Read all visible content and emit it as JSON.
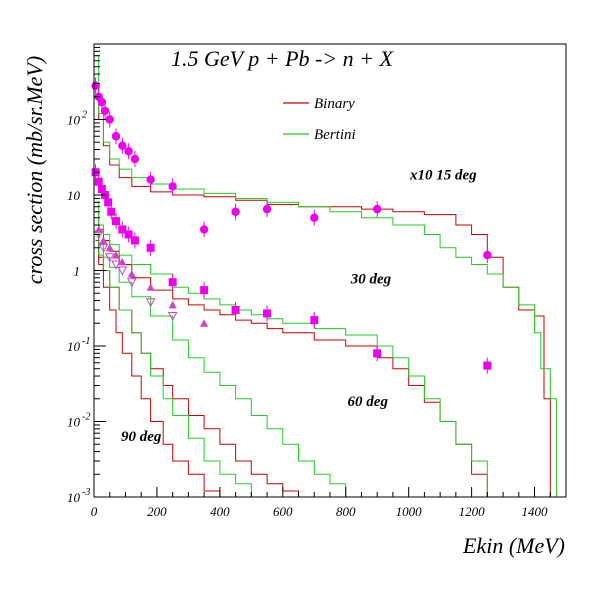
{
  "chart_data": {
    "type": "line",
    "title": "1.5 GeV p + Pb -> n + X",
    "xlabel": "Ekin (MeV)",
    "ylabel": "cross section (mb/sr.MeV)",
    "xlim": [
      0,
      1500
    ],
    "ylim": [
      0.001,
      1000
    ],
    "y_scale": "log",
    "grid": false,
    "legend_position": "top-center",
    "x_ticks": [
      {
        "value": 0,
        "label": "0"
      },
      {
        "value": 200,
        "label": "200"
      },
      {
        "value": 400,
        "label": "400"
      },
      {
        "value": 600,
        "label": "600"
      },
      {
        "value": 800,
        "label": "800"
      },
      {
        "value": 1000,
        "label": "1000"
      },
      {
        "value": 1200,
        "label": "1200"
      },
      {
        "value": 1400,
        "label": "1400"
      }
    ],
    "y_ticks": [
      {
        "value": 0.001,
        "base": "10",
        "exp": "-3"
      },
      {
        "value": 0.01,
        "base": "10",
        "exp": "-2"
      },
      {
        "value": 0.1,
        "base": "10",
        "exp": "-1"
      },
      {
        "value": 1,
        "base": "1",
        "exp": ""
      },
      {
        "value": 10,
        "base": "10",
        "exp": ""
      },
      {
        "value": 100,
        "base": "10",
        "exp": "2"
      }
    ],
    "legend": [
      {
        "name": "Binary",
        "color": "#cc0000"
      },
      {
        "name": "Bertini",
        "color": "#22cc22"
      }
    ],
    "annotations": [
      {
        "text": "x10 15 deg",
        "x": 1110,
        "y": 16
      },
      {
        "text": "30 deg",
        "x": 880,
        "y": 0.67
      },
      {
        "text": "60 deg",
        "x": 870,
        "y": 0.016
      },
      {
        "text": "90 deg",
        "x": 150,
        "y": 0.0055
      }
    ],
    "series": [
      {
        "name": "Binary",
        "color": "#cc0000",
        "angle": "15 deg",
        "x": [
          5,
          15,
          30,
          50,
          80,
          120,
          180,
          250,
          350,
          450,
          550,
          650,
          750,
          850,
          950,
          1050,
          1150,
          1200,
          1250,
          1300,
          1350,
          1400,
          1430,
          1450
        ],
        "y": [
          300,
          100,
          45,
          25,
          17,
          13,
          11,
          10,
          9.5,
          8.5,
          7.5,
          7,
          7,
          6.5,
          6,
          5.5,
          4,
          3,
          1.5,
          0.6,
          0.3,
          0.25,
          0.02,
          0.001
        ]
      },
      {
        "name": "Bertini",
        "color": "#22cc22",
        "angle": "15 deg",
        "x": [
          5,
          15,
          30,
          50,
          80,
          120,
          180,
          250,
          350,
          450,
          550,
          650,
          750,
          850,
          950,
          1050,
          1100,
          1150,
          1200,
          1250,
          1300,
          1350,
          1400,
          1420,
          1450,
          1470
        ],
        "y": [
          700,
          120,
          50,
          30,
          22,
          17,
          14,
          12,
          10.5,
          9,
          8,
          7,
          6,
          5,
          4,
          3,
          2,
          1.5,
          1.2,
          0.9,
          0.6,
          0.35,
          0.15,
          0.05,
          0.02,
          0.001
        ]
      },
      {
        "name": "Binary",
        "color": "#cc0000",
        "angle": "30 deg",
        "x": [
          5,
          15,
          30,
          50,
          80,
          120,
          180,
          250,
          300,
          350,
          400,
          450,
          500,
          550,
          600,
          700,
          800,
          900,
          950,
          1000,
          1050,
          1100,
          1150,
          1200,
          1250
        ],
        "y": [
          6,
          3.5,
          2.5,
          1.8,
          1.2,
          0.8,
          0.55,
          0.42,
          0.35,
          0.3,
          0.26,
          0.22,
          0.2,
          0.17,
          0.15,
          0.12,
          0.1,
          0.07,
          0.05,
          0.03,
          0.018,
          0.01,
          0.005,
          0.002,
          0.001
        ]
      },
      {
        "name": "Bertini",
        "color": "#22cc22",
        "angle": "30 deg",
        "x": [
          5,
          15,
          30,
          50,
          80,
          120,
          180,
          250,
          300,
          350,
          400,
          450,
          500,
          550,
          600,
          700,
          800,
          900,
          950,
          1000,
          1050,
          1100,
          1150,
          1200,
          1250
        ],
        "y": [
          8,
          4,
          3,
          2.2,
          1.6,
          1.2,
          0.9,
          0.6,
          0.5,
          0.42,
          0.35,
          0.3,
          0.26,
          0.23,
          0.2,
          0.17,
          0.14,
          0.1,
          0.07,
          0.04,
          0.02,
          0.01,
          0.005,
          0.003,
          0.001
        ]
      },
      {
        "name": "Binary",
        "color": "#cc0000",
        "angle": "60 deg",
        "x": [
          5,
          15,
          30,
          50,
          80,
          120,
          150,
          180,
          220,
          250,
          300,
          350,
          400,
          450,
          500,
          550,
          600,
          650
        ],
        "y": [
          3,
          1.5,
          1,
          0.6,
          0.3,
          0.15,
          0.08,
          0.05,
          0.03,
          0.02,
          0.012,
          0.008,
          0.005,
          0.003,
          0.002,
          0.0015,
          0.0012,
          0.001
        ]
      },
      {
        "name": "Bertini",
        "color": "#22cc22",
        "angle": "60 deg",
        "x": [
          5,
          15,
          30,
          50,
          80,
          120,
          180,
          250,
          300,
          350,
          400,
          450,
          500,
          550,
          600,
          650,
          700,
          750,
          800
        ],
        "y": [
          4,
          2.2,
          1.5,
          1.1,
          0.7,
          0.45,
          0.25,
          0.12,
          0.07,
          0.045,
          0.03,
          0.02,
          0.012,
          0.008,
          0.005,
          0.003,
          0.002,
          0.0015,
          0.001
        ]
      },
      {
        "name": "Binary",
        "color": "#cc0000",
        "angle": "90 deg",
        "x": [
          5,
          15,
          30,
          50,
          70,
          90,
          120,
          150,
          180,
          220,
          250,
          300,
          350,
          400
        ],
        "y": [
          2.5,
          1.2,
          0.6,
          0.3,
          0.15,
          0.08,
          0.04,
          0.02,
          0.01,
          0.005,
          0.003,
          0.002,
          0.0012,
          0.001
        ]
      },
      {
        "name": "Bertini",
        "color": "#22cc22",
        "angle": "90 deg",
        "x": [
          5,
          15,
          30,
          50,
          80,
          120,
          150,
          180,
          220,
          250,
          300,
          350,
          400,
          450,
          500
        ],
        "y": [
          3,
          1.6,
          1,
          0.6,
          0.3,
          0.15,
          0.08,
          0.04,
          0.02,
          0.012,
          0.006,
          0.003,
          0.002,
          0.0015,
          0.001
        ]
      }
    ],
    "markers": [
      {
        "angle": "15 deg",
        "shape": "circle",
        "color": "#ee00ee",
        "points": [
          [
            5,
            280
          ],
          [
            15,
            200
          ],
          [
            25,
            170
          ],
          [
            35,
            130
          ],
          [
            50,
            100
          ],
          [
            70,
            60
          ],
          [
            90,
            45
          ],
          [
            110,
            38
          ],
          [
            130,
            30
          ],
          [
            180,
            16
          ],
          [
            250,
            13
          ],
          [
            350,
            3.5
          ],
          [
            450,
            6
          ],
          [
            550,
            6.5
          ],
          [
            700,
            5
          ],
          [
            900,
            6.5
          ],
          [
            1250,
            1.6
          ]
        ]
      },
      {
        "angle": "30 deg",
        "shape": "square",
        "color": "#ee00ee",
        "points": [
          [
            5,
            20
          ],
          [
            15,
            15
          ],
          [
            25,
            12
          ],
          [
            35,
            10
          ],
          [
            45,
            8
          ],
          [
            55,
            6
          ],
          [
            70,
            4.5
          ],
          [
            90,
            3.5
          ],
          [
            110,
            3
          ],
          [
            130,
            2.5
          ],
          [
            180,
            2
          ],
          [
            250,
            0.7
          ],
          [
            350,
            0.55
          ],
          [
            450,
            0.3
          ],
          [
            550,
            0.27
          ],
          [
            700,
            0.22
          ],
          [
            900,
            0.08
          ],
          [
            1250,
            0.055
          ]
        ]
      },
      {
        "angle": "60 deg",
        "shape": "triangle-up",
        "color": "#cc44cc",
        "points": [
          [
            15,
            3.5
          ],
          [
            30,
            2.5
          ],
          [
            50,
            2
          ],
          [
            70,
            1.6
          ],
          [
            90,
            1.3
          ],
          [
            120,
            0.9
          ],
          [
            180,
            0.6
          ],
          [
            250,
            0.35
          ],
          [
            350,
            0.2
          ]
        ]
      },
      {
        "angle": "90 deg",
        "shape": "triangle-down",
        "color": "#cc44cc",
        "points": [
          [
            15,
            3
          ],
          [
            30,
            2
          ],
          [
            50,
            1.5
          ],
          [
            70,
            1.2
          ],
          [
            90,
            1
          ],
          [
            120,
            0.7
          ],
          [
            180,
            0.38
          ],
          [
            250,
            0.25
          ]
        ]
      }
    ]
  }
}
